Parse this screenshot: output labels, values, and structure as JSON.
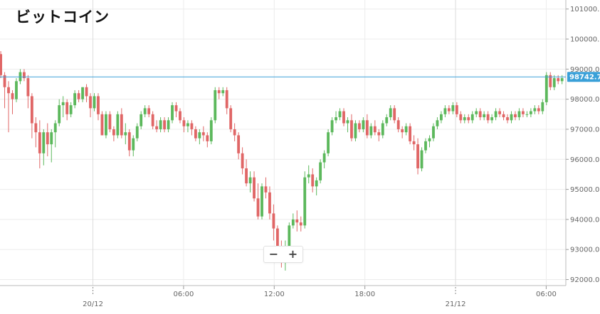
{
  "chart_data": {
    "type": "candlestick",
    "title": "ビットコイン",
    "current_price_label": "98742.7",
    "current_price": 98742.7,
    "ylim": [
      91800,
      101300
    ],
    "y_ticks": [
      "92000.0",
      "93000.0",
      "94000.0",
      "95000.0",
      "96000.0",
      "97000.0",
      "98000.0",
      "99000.0",
      "100000.0",
      "101000.0"
    ],
    "x_ticks": [
      {
        "label": "20/12",
        "day_marker": true,
        "t": 1.6
      },
      {
        "label": "06:00",
        "day_marker": false,
        "t": 7.6
      },
      {
        "label": "12:00",
        "day_marker": false,
        "t": 13.6
      },
      {
        "label": "18:00",
        "day_marker": false,
        "t": 19.6
      },
      {
        "label": "21/12",
        "day_marker": true,
        "t": 25.6
      },
      {
        "label": "06:00",
        "day_marker": false,
        "t": 31.6
      }
    ],
    "time_range_hours": [
      -4.55,
      32.9
    ],
    "grid": true,
    "colors": {
      "up": "#5cb85c",
      "down": "#e06666",
      "price_line": "#3aa0d8",
      "grid": "#ececec"
    },
    "candles_ohlc": [
      [
        99500,
        99600,
        98700,
        98800
      ],
      [
        98800,
        98900,
        97700,
        98400
      ],
      [
        98400,
        98600,
        96900,
        98200
      ],
      [
        98200,
        98300,
        97500,
        98000
      ],
      [
        98000,
        98700,
        97900,
        98600
      ],
      [
        98600,
        99000,
        98500,
        98900
      ],
      [
        98900,
        99000,
        98600,
        98700
      ],
      [
        98700,
        98800,
        97700,
        98100
      ],
      [
        98100,
        98200,
        96700,
        97200
      ],
      [
        97200,
        97400,
        96400,
        96900
      ],
      [
        96900,
        97300,
        95700,
        96200
      ],
      [
        96200,
        97000,
        95800,
        96900
      ],
      [
        96900,
        97200,
        96100,
        96500
      ],
      [
        96500,
        97000,
        95900,
        96900
      ],
      [
        96900,
        97300,
        96400,
        97200
      ],
      [
        97200,
        98000,
        97100,
        97800
      ],
      [
        97800,
        98100,
        97400,
        97900
      ],
      [
        97900,
        98000,
        97300,
        97500
      ],
      [
        97500,
        97900,
        97400,
        97800
      ],
      [
        97800,
        98300,
        97700,
        98200
      ],
      [
        98200,
        98300,
        97900,
        98000
      ],
      [
        98000,
        98400,
        97900,
        98400
      ],
      [
        98400,
        98500,
        97900,
        98100
      ],
      [
        98100,
        98200,
        97400,
        97700
      ],
      [
        97700,
        98200,
        97600,
        98100
      ],
      [
        98100,
        98200,
        97300,
        97500
      ],
      [
        97500,
        97600,
        96800,
        96800
      ],
      [
        96800,
        97600,
        96700,
        97500
      ],
      [
        97500,
        97600,
        96900,
        97000
      ],
      [
        97000,
        97100,
        96600,
        96800
      ],
      [
        96800,
        97600,
        96700,
        97500
      ],
      [
        97500,
        97700,
        96700,
        96800
      ],
      [
        96800,
        97200,
        96500,
        96900
      ],
      [
        96900,
        97000,
        96100,
        96300
      ],
      [
        96300,
        96800,
        96100,
        96700
      ],
      [
        96700,
        97200,
        96600,
        97100
      ],
      [
        97100,
        97600,
        97000,
        97500
      ],
      [
        97500,
        97800,
        97400,
        97700
      ],
      [
        97700,
        97800,
        97400,
        97500
      ],
      [
        97500,
        97600,
        97000,
        97100
      ],
      [
        97100,
        97300,
        96900,
        97000
      ],
      [
        97000,
        97400,
        96900,
        97300
      ],
      [
        97300,
        97400,
        96900,
        97000
      ],
      [
        97000,
        97400,
        96900,
        97300
      ],
      [
        97300,
        97900,
        97200,
        97800
      ],
      [
        97800,
        97900,
        97400,
        97600
      ],
      [
        97600,
        97700,
        97200,
        97300
      ],
      [
        97300,
        97400,
        96900,
        97100
      ],
      [
        97100,
        97300,
        96900,
        97200
      ],
      [
        97200,
        97300,
        96800,
        97000
      ],
      [
        97000,
        97100,
        96600,
        96700
      ],
      [
        96700,
        97000,
        96500,
        96900
      ],
      [
        96900,
        97100,
        96600,
        96800
      ],
      [
        96800,
        96900,
        96400,
        96600
      ],
      [
        96600,
        97400,
        96500,
        97300
      ],
      [
        97300,
        98400,
        97200,
        98300
      ],
      [
        98300,
        98400,
        98000,
        98200
      ],
      [
        98200,
        98400,
        98100,
        98300
      ],
      [
        98300,
        98400,
        97500,
        97700
      ],
      [
        97700,
        97800,
        96900,
        97000
      ],
      [
        97000,
        97200,
        96600,
        96800
      ],
      [
        96800,
        96900,
        96000,
        96200
      ],
      [
        96200,
        96400,
        95500,
        95700
      ],
      [
        95700,
        96000,
        95100,
        95200
      ],
      [
        95200,
        95600,
        94900,
        95400
      ],
      [
        95400,
        95600,
        94600,
        94700
      ],
      [
        94700,
        95200,
        94000,
        94100
      ],
      [
        94100,
        95200,
        94000,
        95100
      ],
      [
        95100,
        95400,
        94700,
        94900
      ],
      [
        94900,
        95100,
        94000,
        94200
      ],
      [
        94200,
        94500,
        93300,
        93700
      ],
      [
        93700,
        93800,
        92600,
        93000
      ],
      [
        93000,
        93300,
        92400,
        92600
      ],
      [
        92600,
        93300,
        92300,
        93100
      ],
      [
        93100,
        93900,
        93000,
        93800
      ],
      [
        93800,
        94200,
        93700,
        94000
      ],
      [
        94000,
        94300,
        93600,
        93900
      ],
      [
        93900,
        94100,
        93600,
        93800
      ],
      [
        93800,
        95600,
        93700,
        95400
      ],
      [
        95400,
        95800,
        95200,
        95500
      ],
      [
        95500,
        95700,
        94900,
        95100
      ],
      [
        95100,
        95400,
        94800,
        95300
      ],
      [
        95300,
        96000,
        95200,
        95900
      ],
      [
        95900,
        96300,
        95700,
        96200
      ],
      [
        96200,
        97000,
        96100,
        96900
      ],
      [
        96900,
        97400,
        96800,
        97300
      ],
      [
        97300,
        97600,
        97200,
        97400
      ],
      [
        97400,
        97700,
        97300,
        97600
      ],
      [
        97600,
        97700,
        97100,
        97200
      ],
      [
        97200,
        97400,
        96900,
        97300
      ],
      [
        97300,
        97500,
        96600,
        96700
      ],
      [
        96700,
        97300,
        96600,
        97200
      ],
      [
        97200,
        97300,
        96900,
        97000
      ],
      [
        97000,
        97400,
        96900,
        97300
      ],
      [
        97300,
        97500,
        96700,
        96800
      ],
      [
        96800,
        97200,
        96700,
        97100
      ],
      [
        97100,
        97300,
        96800,
        96900
      ],
      [
        96900,
        97000,
        96600,
        96800
      ],
      [
        96800,
        97300,
        96700,
        97200
      ],
      [
        97200,
        97500,
        97100,
        97400
      ],
      [
        97400,
        97800,
        97300,
        97700
      ],
      [
        97700,
        97800,
        97200,
        97300
      ],
      [
        97300,
        97400,
        96900,
        97000
      ],
      [
        97000,
        97100,
        96700,
        96900
      ],
      [
        96900,
        97200,
        96800,
        97100
      ],
      [
        97100,
        97200,
        96500,
        96600
      ],
      [
        96600,
        96800,
        96300,
        96500
      ],
      [
        96500,
        96700,
        95500,
        95700
      ],
      [
        95700,
        96400,
        95600,
        96300
      ],
      [
        96300,
        96700,
        96200,
        96600
      ],
      [
        96600,
        96800,
        96400,
        96700
      ],
      [
        96700,
        97200,
        96600,
        97100
      ],
      [
        97100,
        97400,
        97000,
        97300
      ],
      [
        97300,
        97600,
        97200,
        97500
      ],
      [
        97500,
        97800,
        97400,
        97700
      ],
      [
        97700,
        97800,
        97500,
        97600
      ],
      [
        97600,
        97900,
        97500,
        97800
      ],
      [
        97800,
        97900,
        97400,
        97500
      ],
      [
        97500,
        97600,
        97200,
        97300
      ],
      [
        97300,
        97500,
        97200,
        97400
      ],
      [
        97400,
        97500,
        97200,
        97300
      ],
      [
        97300,
        97600,
        97200,
        97500
      ],
      [
        97500,
        97700,
        97400,
        97600
      ],
      [
        97600,
        97700,
        97300,
        97400
      ],
      [
        97400,
        97600,
        97300,
        97500
      ],
      [
        97500,
        97600,
        97200,
        97300
      ],
      [
        97300,
        97500,
        97200,
        97400
      ],
      [
        97400,
        97700,
        97300,
        97600
      ],
      [
        97600,
        97700,
        97400,
        97500
      ],
      [
        97500,
        97600,
        97300,
        97400
      ],
      [
        97400,
        97500,
        97200,
        97300
      ],
      [
        97300,
        97600,
        97200,
        97500
      ],
      [
        97500,
        97600,
        97300,
        97400
      ],
      [
        97400,
        97700,
        97300,
        97600
      ],
      [
        97600,
        97700,
        97400,
        97500
      ],
      [
        97500,
        97600,
        97400,
        97500
      ],
      [
        97500,
        97700,
        97400,
        97600
      ],
      [
        97600,
        97800,
        97500,
        97700
      ],
      [
        97700,
        97800,
        97500,
        97600
      ],
      [
        97600,
        98000,
        97500,
        97900
      ],
      [
        97900,
        98900,
        97800,
        98800
      ],
      [
        98800,
        98900,
        98300,
        98400
      ],
      [
        98400,
        98800,
        98300,
        98700
      ],
      [
        98700,
        98800,
        98500,
        98600
      ],
      [
        98600,
        98800,
        98500,
        98700
      ]
    ]
  },
  "zoom": {
    "minus_label": "−",
    "plus_label": "+"
  }
}
